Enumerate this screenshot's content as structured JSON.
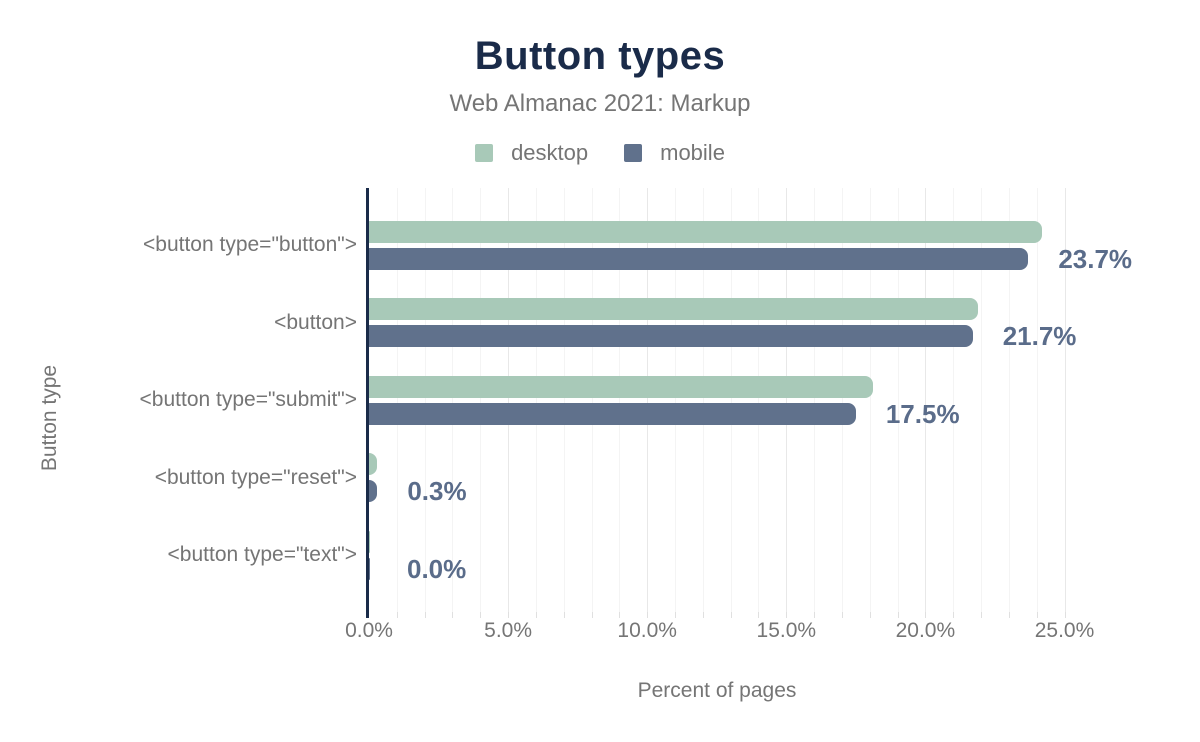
{
  "colors": {
    "title_navy": "#1a2b49",
    "axis_text_gray": "#757575",
    "annotation_blue": "#5a6c8a",
    "desktop_green": "#a8c9b8",
    "mobile_blue": "#60718c",
    "axis_line": "#1a2b49",
    "gridline_minor": "#f4f4f4",
    "gridline_major": "#e8e8e8"
  },
  "chart_data": {
    "type": "bar",
    "orientation": "horizontal",
    "title": "Button types",
    "subtitle": "Web Almanac 2021: Markup",
    "xlabel": "Percent of pages",
    "ylabel": "Button type",
    "categories": [
      "<button type=\"button\">",
      "<button>",
      "<button type=\"submit\">",
      "<button type=\"reset\">",
      "<button type=\"text\">"
    ],
    "series": [
      {
        "name": "desktop",
        "color": "#a8c9b8",
        "values": [
          24.2,
          21.9,
          18.1,
          0.3,
          0.03
        ]
      },
      {
        "name": "mobile",
        "color": "#60718c",
        "values": [
          23.7,
          21.7,
          17.5,
          0.3,
          0.03
        ]
      }
    ],
    "annotations": [
      "23.7%",
      "21.7%",
      "17.5%",
      "0.3%",
      "0.0%"
    ],
    "annotated_series": "mobile",
    "x_ticks": [
      "0.0%",
      "5.0%",
      "10.0%",
      "15.0%",
      "20.0%",
      "25.0%"
    ],
    "x_tick_values": [
      0,
      5,
      10,
      15,
      20,
      25
    ],
    "xlim": [
      0,
      28.25
    ],
    "minor_grid_step_pct": 1,
    "major_grid_step_pct": 5,
    "legend_position": "top",
    "grid": true
  }
}
